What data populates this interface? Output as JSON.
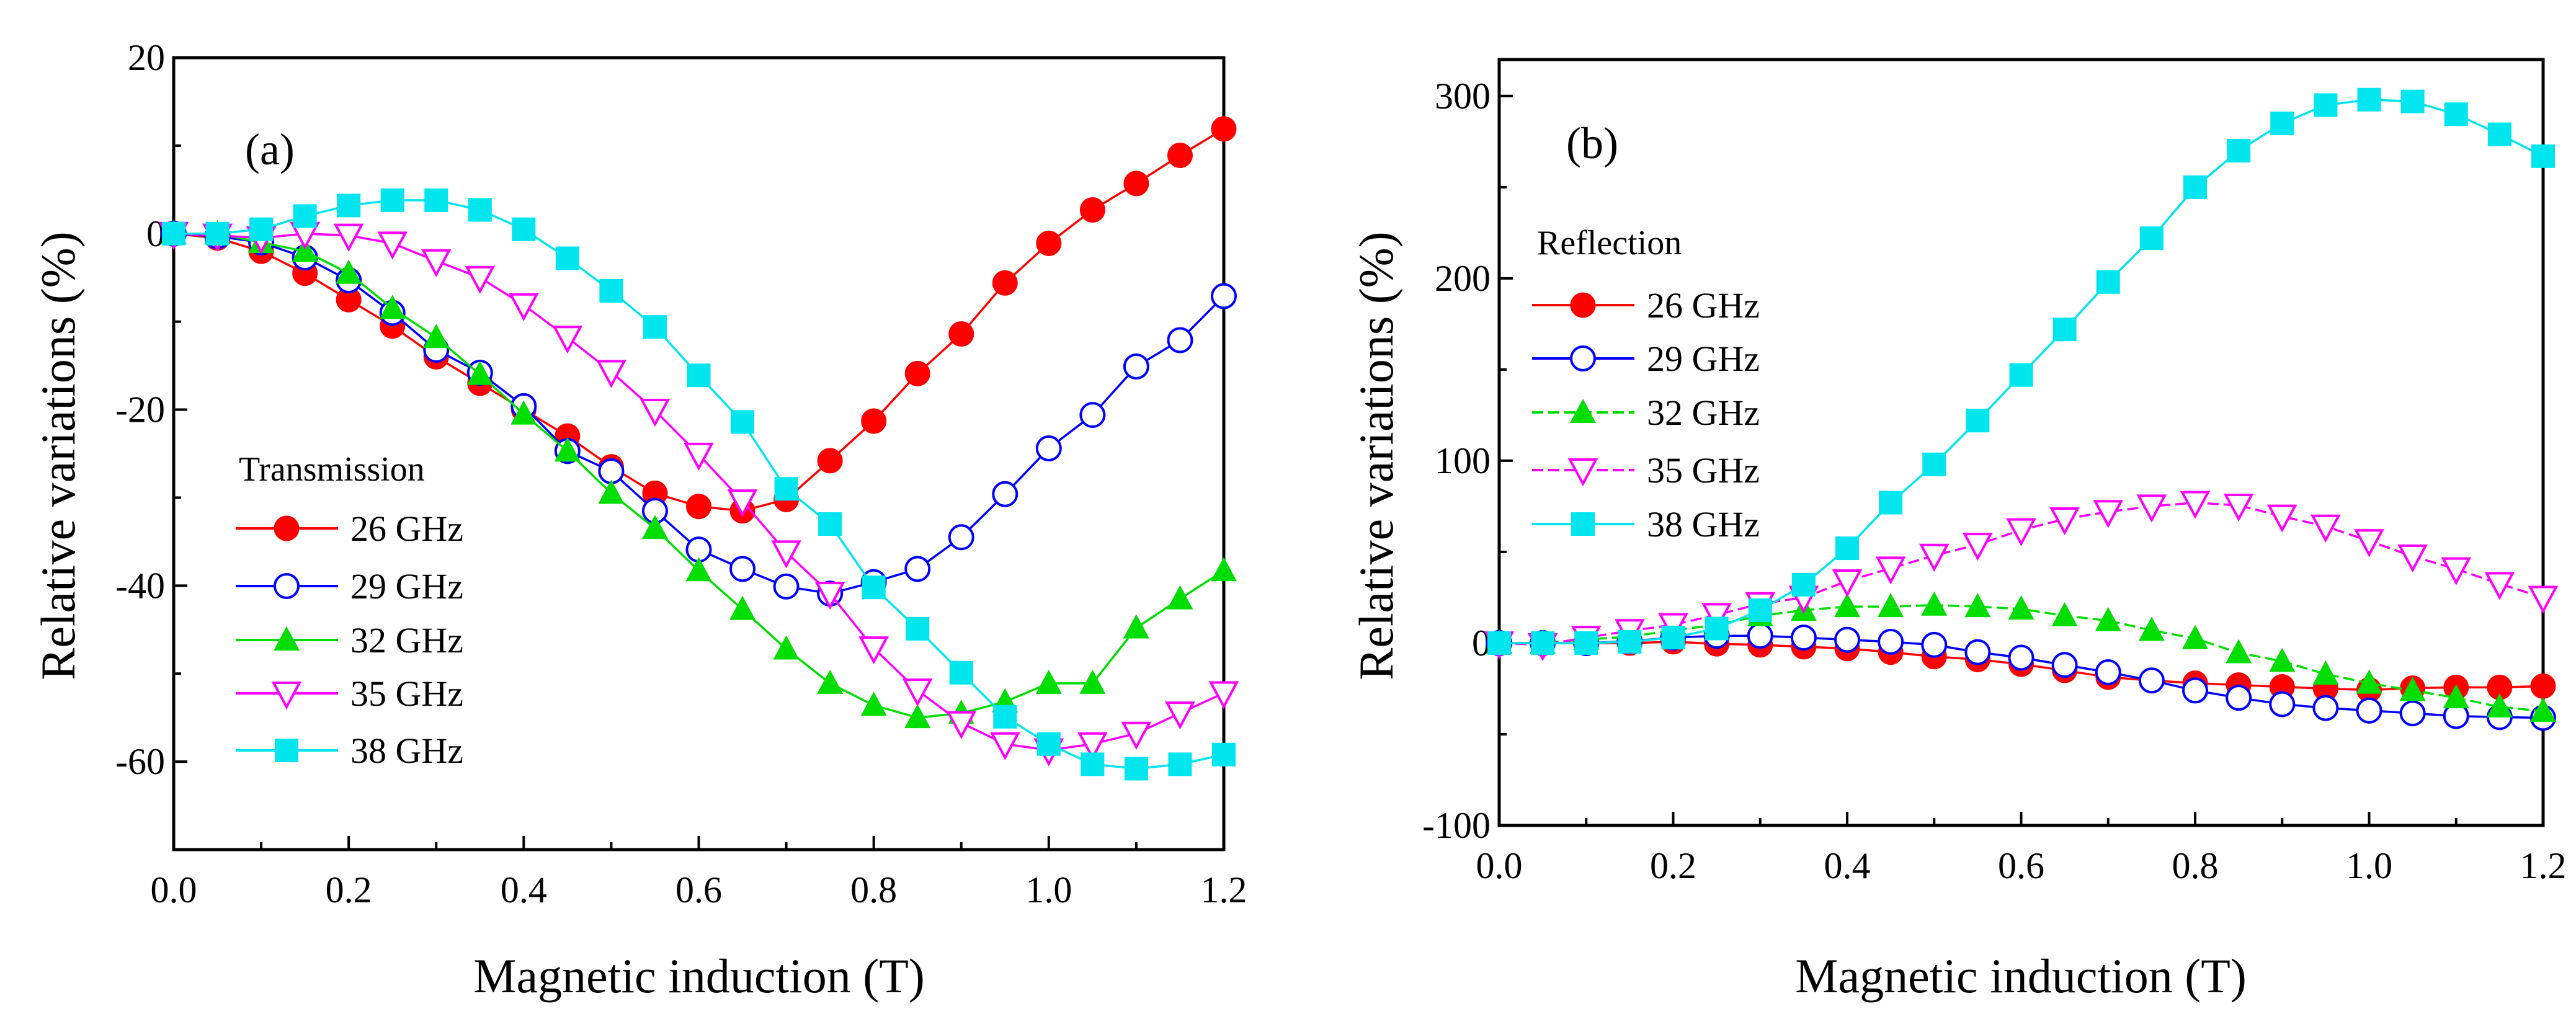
{
  "chart_data": [
    {
      "type": "line",
      "panel_label": "(a)",
      "xlabel": "Magnetic induction (T)",
      "ylabel": "Relative variations (%)",
      "xlim": [
        0,
        1.2
      ],
      "ylim": [
        -70,
        20
      ],
      "xticks": [
        "0.0",
        "0.2",
        "0.4",
        "0.6",
        "0.8",
        "1.0",
        "1.2"
      ],
      "yticks": [
        "20",
        "0",
        "-20",
        "-40",
        "-60"
      ],
      "legend_title": "Transmission",
      "legend_placement": "lower-left",
      "grid": false,
      "x": [
        0,
        0.05,
        0.1,
        0.15,
        0.2,
        0.25,
        0.3,
        0.35,
        0.4,
        0.45,
        0.5,
        0.55,
        0.6,
        0.65,
        0.7,
        0.75,
        0.8,
        0.85,
        0.9,
        0.95,
        1.0,
        1.05,
        1.1,
        1.15,
        1.2
      ],
      "series": [
        {
          "name": "26 GHz",
          "color": "#ff0000",
          "marker": "circle-filled",
          "values": [
            0,
            -0.5,
            -2,
            -4.5,
            -7.5,
            -10.5,
            -14,
            -17,
            -20,
            -23,
            -26.5,
            -29.5,
            -31,
            -31.5,
            -30.2,
            -25.8,
            -21.3,
            -15.9,
            -11.4,
            -5.6,
            -1.1,
            2.7,
            5.7,
            8.9,
            11.9
          ]
        },
        {
          "name": "29 GHz",
          "color": "#0000ff",
          "marker": "circle-open",
          "values": [
            0,
            -0.3,
            -1,
            -2.7,
            -5.3,
            -9,
            -13.2,
            -15.8,
            -19.6,
            -24.7,
            -27,
            -31.5,
            -35.9,
            -38.1,
            -40.1,
            -40.9,
            -39.6,
            -38.1,
            -34.5,
            -29.6,
            -24.4,
            -20.6,
            -15.1,
            -12.1,
            -7.1
          ]
        },
        {
          "name": "32 GHz",
          "color": "#00dd00",
          "marker": "triangle-up-filled",
          "values": [
            0,
            0,
            -1,
            -2,
            -4.5,
            -8.5,
            -11.8,
            -16,
            -20.5,
            -24.7,
            -29.5,
            -33.5,
            -38.3,
            -42.7,
            -47.2,
            -51.1,
            -53.6,
            -55,
            -54.5,
            -53.2,
            -51.1,
            -51.1,
            -44.8,
            -41.5,
            -38.3
          ]
        },
        {
          "name": "35 GHz",
          "color": "#ff00ff",
          "marker": "triangle-down-open",
          "values": [
            0,
            -0.2,
            -0.5,
            0,
            -0.2,
            -1.1,
            -3.1,
            -5,
            -8.1,
            -11.8,
            -15.7,
            -20.1,
            -25.1,
            -30.4,
            -36.2,
            -40.9,
            -47.1,
            -51.9,
            -55.6,
            -58,
            -58.7,
            -58,
            -56.8,
            -54.5,
            -52.2
          ]
        },
        {
          "name": "38 GHz",
          "color": "#00e5ee",
          "marker": "square-filled",
          "values": [
            0,
            0,
            0.5,
            2,
            3.2,
            3.8,
            3.8,
            2.7,
            0.5,
            -2.8,
            -6.5,
            -10.6,
            -16.1,
            -21.4,
            -29,
            -33,
            -40.2,
            -44.9,
            -49.9,
            -54.9,
            -58,
            -60.3,
            -60.8,
            -60.3,
            -59.2
          ]
        }
      ]
    },
    {
      "type": "line",
      "panel_label": "(b)",
      "xlabel": "Magnetic induction (T)",
      "ylabel": "Relative variations (%)",
      "xlim": [
        0,
        1.2
      ],
      "ylim": [
        -100,
        320
      ],
      "xticks": [
        "0.0",
        "0.2",
        "0.4",
        "0.6",
        "0.8",
        "1.0",
        "1.2"
      ],
      "yticks": [
        "300",
        "200",
        "100",
        "0",
        "-100"
      ],
      "legend_title": "Reflection",
      "legend_placement": "upper-left",
      "grid": false,
      "x": [
        0,
        0.05,
        0.1,
        0.15,
        0.2,
        0.25,
        0.3,
        0.35,
        0.4,
        0.45,
        0.5,
        0.55,
        0.6,
        0.65,
        0.7,
        0.75,
        0.8,
        0.85,
        0.9,
        0.95,
        1.0,
        1.05,
        1.1,
        1.15,
        1.2
      ],
      "series": [
        {
          "name": "26 GHz",
          "color": "#ff0000",
          "marker": "circle-filled",
          "values": [
            0,
            0,
            0,
            0,
            0.7,
            -0.4,
            -1,
            -2,
            -3,
            -5,
            -7.4,
            -9,
            -11.6,
            -15,
            -18.7,
            -20.5,
            -22,
            -23,
            -24,
            -25,
            -25.7,
            -24.7,
            -24.3,
            -24.3,
            -23.6
          ]
        },
        {
          "name": "29 GHz",
          "color": "#0000ff",
          "marker": "circle-open",
          "values": [
            0,
            0,
            0,
            1,
            3,
            4,
            4,
            3,
            1.8,
            0.7,
            -1,
            -5,
            -8,
            -12,
            -16,
            -20.5,
            -26,
            -30,
            -33.5,
            -35.6,
            -37,
            -38.5,
            -40,
            -40.6,
            -41
          ]
        },
        {
          "name": "32 GHz",
          "color": "#00dd00",
          "marker": "triangle-up-filled",
          "dashed": true,
          "values": [
            0,
            0,
            2,
            3.5,
            7,
            10,
            15,
            18,
            20,
            20,
            20.8,
            20,
            18.7,
            15,
            12.3,
            7,
            2.5,
            -5.3,
            -10,
            -17,
            -22,
            -26,
            -30,
            -35,
            -37.4
          ]
        },
        {
          "name": "35 GHz",
          "color": "#ff00ff",
          "marker": "triangle-down-open",
          "dashed": true,
          "values": [
            0,
            -1,
            3,
            6.7,
            10,
            15.5,
            21.5,
            25,
            34,
            41,
            48,
            54,
            62,
            68,
            72,
            75,
            77,
            75.5,
            69.5,
            64,
            56,
            47.6,
            40.6,
            32.5,
            25
          ]
        },
        {
          "name": "38 GHz",
          "color": "#00e5ee",
          "marker": "square-filled",
          "values": [
            0,
            0,
            0,
            0.7,
            3,
            8,
            18,
            32,
            52,
            77,
            98,
            122,
            147,
            172,
            198,
            222,
            250,
            270,
            285,
            295,
            298,
            297,
            290,
            279,
            267
          ]
        }
      ]
    }
  ]
}
